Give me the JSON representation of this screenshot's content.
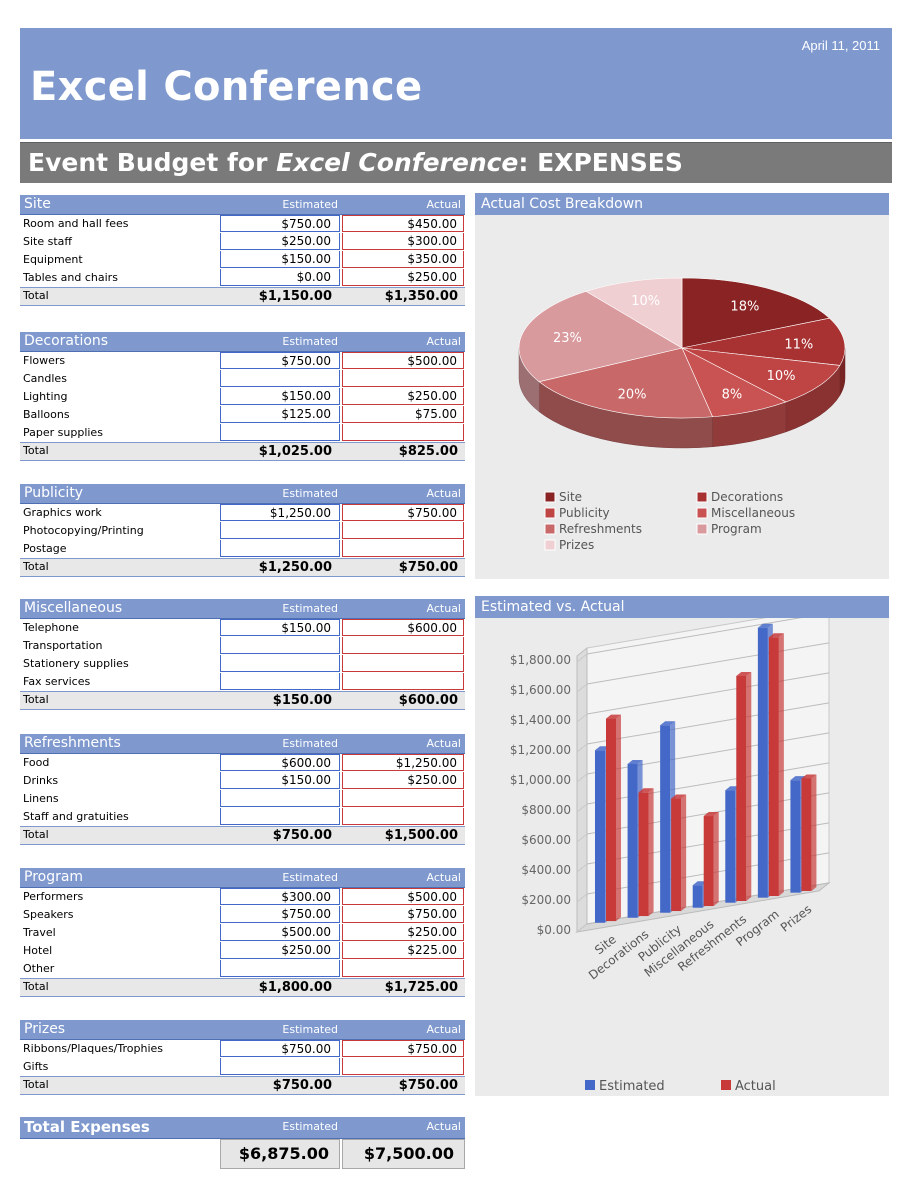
{
  "header": {
    "date": "April 11, 2011",
    "title": "Excel Conference",
    "subtitle_prefix": "Event Budget for ",
    "subtitle_event": "Excel Conference",
    "subtitle_suffix": ": EXPENSES"
  },
  "columns": {
    "estimated": "Estimated",
    "actual": "Actual",
    "total": "Total"
  },
  "sections": [
    {
      "name": "Site",
      "rows": [
        {
          "label": "Room and hall fees",
          "estimated": "$750.00",
          "actual": "$450.00"
        },
        {
          "label": "Site staff",
          "estimated": "$250.00",
          "actual": "$300.00"
        },
        {
          "label": "Equipment",
          "estimated": "$150.00",
          "actual": "$350.00"
        },
        {
          "label": "Tables and chairs",
          "estimated": "$0.00",
          "actual": "$250.00"
        }
      ],
      "total_estimated": "$1,150.00",
      "total_actual": "$1,350.00"
    },
    {
      "name": "Decorations",
      "rows": [
        {
          "label": "Flowers",
          "estimated": "$750.00",
          "actual": "$500.00"
        },
        {
          "label": "Candles",
          "estimated": "",
          "actual": ""
        },
        {
          "label": "Lighting",
          "estimated": "$150.00",
          "actual": "$250.00"
        },
        {
          "label": "Balloons",
          "estimated": "$125.00",
          "actual": "$75.00"
        },
        {
          "label": "Paper supplies",
          "estimated": "",
          "actual": ""
        }
      ],
      "total_estimated": "$1,025.00",
      "total_actual": "$825.00"
    },
    {
      "name": "Publicity",
      "rows": [
        {
          "label": "Graphics work",
          "estimated": "$1,250.00",
          "actual": "$750.00"
        },
        {
          "label": "Photocopying/Printing",
          "estimated": "",
          "actual": ""
        },
        {
          "label": "Postage",
          "estimated": "",
          "actual": ""
        }
      ],
      "total_estimated": "$1,250.00",
      "total_actual": "$750.00"
    },
    {
      "name": "Miscellaneous",
      "rows": [
        {
          "label": "Telephone",
          "estimated": "$150.00",
          "actual": "$600.00"
        },
        {
          "label": "Transportation",
          "estimated": "",
          "actual": ""
        },
        {
          "label": "Stationery supplies",
          "estimated": "",
          "actual": ""
        },
        {
          "label": "Fax services",
          "estimated": "",
          "actual": ""
        }
      ],
      "total_estimated": "$150.00",
      "total_actual": "$600.00"
    },
    {
      "name": "Refreshments",
      "rows": [
        {
          "label": "Food",
          "estimated": "$600.00",
          "actual": "$1,250.00"
        },
        {
          "label": "Drinks",
          "estimated": "$150.00",
          "actual": "$250.00"
        },
        {
          "label": "Linens",
          "estimated": "",
          "actual": ""
        },
        {
          "label": "Staff and gratuities",
          "estimated": "",
          "actual": ""
        }
      ],
      "total_estimated": "$750.00",
      "total_actual": "$1,500.00"
    },
    {
      "name": "Program",
      "rows": [
        {
          "label": "Performers",
          "estimated": "$300.00",
          "actual": "$500.00"
        },
        {
          "label": "Speakers",
          "estimated": "$750.00",
          "actual": "$750.00"
        },
        {
          "label": "Travel",
          "estimated": "$500.00",
          "actual": "$250.00"
        },
        {
          "label": "Hotel",
          "estimated": "$250.00",
          "actual": "$225.00"
        },
        {
          "label": "Other",
          "estimated": "",
          "actual": ""
        }
      ],
      "total_estimated": "$1,800.00",
      "total_actual": "$1,725.00"
    },
    {
      "name": "Prizes",
      "rows": [
        {
          "label": "Ribbons/Plaques/Trophies",
          "estimated": "$750.00",
          "actual": "$750.00"
        },
        {
          "label": "Gifts",
          "estimated": "",
          "actual": ""
        }
      ],
      "total_estimated": "$750.00",
      "total_actual": "$750.00"
    }
  ],
  "grand_total": {
    "label": "Total Expenses",
    "estimated": "$6,875.00",
    "actual": "$7,500.00"
  },
  "colors": {
    "header_blue": "#7f99cf",
    "estimated_blue": "#4468c8",
    "actual_red": "#c83a3a",
    "pie": [
      "#8a2323",
      "#a83232",
      "#bf4444",
      "#c95252",
      "#c86868",
      "#d99a9e",
      "#f0cfd2"
    ]
  },
  "chart_data": [
    {
      "type": "pie",
      "title": "Actual Cost Breakdown",
      "categories": [
        "Site",
        "Decorations",
        "Publicity",
        "Miscellaneous",
        "Refreshments",
        "Program",
        "Prizes"
      ],
      "values": [
        18,
        11,
        10,
        8,
        20,
        23,
        10
      ],
      "value_labels": [
        "18%",
        "11%",
        "10%",
        "8%",
        "20%",
        "23%",
        "10%"
      ],
      "legend": "bottom"
    },
    {
      "type": "bar",
      "title": "Estimated vs. Actual",
      "categories": [
        "Site",
        "Decorations",
        "Publicity",
        "Miscellaneous",
        "Refreshments",
        "Program",
        "Prizes"
      ],
      "series": [
        {
          "name": "Estimated",
          "values": [
            1150,
            1025,
            1250,
            150,
            750,
            1800,
            750
          ]
        },
        {
          "name": "Actual",
          "values": [
            1350,
            825,
            750,
            600,
            1500,
            1725,
            750
          ]
        }
      ],
      "yticks": [
        "$0.00",
        "$200.00",
        "$400.00",
        "$600.00",
        "$800.00",
        "$1,000.00",
        "$1,200.00",
        "$1,400.00",
        "$1,600.00",
        "$1,800.00"
      ],
      "ylim": [
        0,
        1800
      ],
      "grid": true,
      "legend": "bottom"
    }
  ]
}
